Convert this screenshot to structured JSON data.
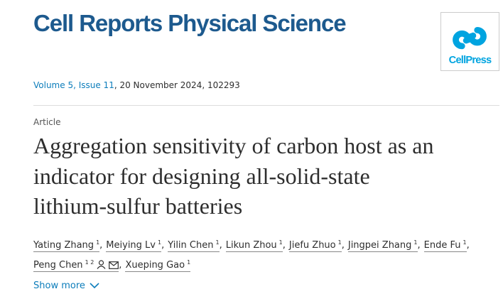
{
  "header": {
    "journal": "Cell Reports Physical Science",
    "publisher": "CellPress"
  },
  "issue": {
    "volume_issue": "Volume 5, Issue 11",
    "details": ", 20 November 2024, 102293"
  },
  "article": {
    "type": "Article",
    "title_lines": [
      "Aggregation sensitivity of carbon host as an",
      "indicator for designing all-solid-state",
      "lithium-sulfur batteries"
    ]
  },
  "authors": {
    "separator": ",",
    "lines": [
      [
        {
          "name": "Yating Zhang",
          "aff": "1"
        },
        {
          "name": "Meiying Lv",
          "aff": "1"
        },
        {
          "name": "Yilin Chen",
          "aff": "1"
        },
        {
          "name": "Likun Zhou",
          "aff": "1"
        },
        {
          "name": "Jiefu Zhuo",
          "aff": "1"
        },
        {
          "name": "Jingpei Zhang",
          "aff": "1"
        },
        {
          "name": "Ende Fu",
          "aff": "1"
        }
      ],
      [
        {
          "name": "Peng Chen",
          "aff": "1 2",
          "corresponding": true
        },
        {
          "name": "Xueping Gao",
          "aff": "1"
        }
      ]
    ]
  },
  "show_more": "Show more"
}
